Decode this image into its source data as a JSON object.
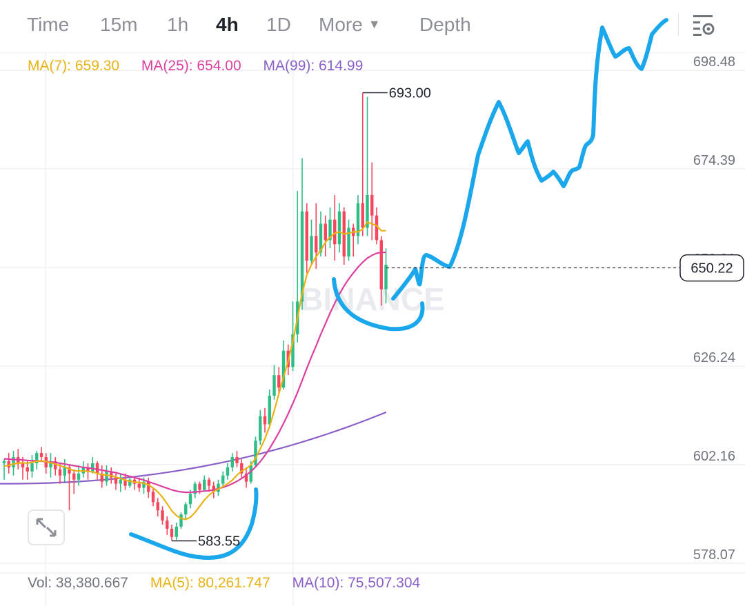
{
  "toolbar": {
    "tabs": [
      {
        "label": "Time",
        "active": false
      },
      {
        "label": "15m",
        "active": false
      },
      {
        "label": "1h",
        "active": false
      },
      {
        "label": "4h",
        "active": true
      },
      {
        "label": "1D",
        "active": false
      },
      {
        "label": "More",
        "active": false
      },
      {
        "label": "Depth",
        "active": false
      }
    ],
    "icons": [
      "chevron-down-icon",
      "settings-icon"
    ]
  },
  "indicators": {
    "ma7": {
      "label": "MA(7): 659.30",
      "color": "#e9b213"
    },
    "ma25": {
      "label": "MA(25): 654.00",
      "color": "#dc3fa0"
    },
    "ma99": {
      "label": "MA(99): 614.99",
      "color": "#8a5fc8"
    }
  },
  "volume": {
    "vol": {
      "label": "Vol: 38,380.667",
      "color": "#70757c"
    },
    "ma5": {
      "label": "MA(5): 80,261.747",
      "color": "#e9b213"
    },
    "ma10": {
      "label": "MA(10): 75,507.304",
      "color": "#8a5fc8"
    }
  },
  "chart_data": {
    "type": "candlestick",
    "y_ticks": [
      "698.48",
      "674.39",
      "650.31",
      "626.24",
      "602.16",
      "578.07"
    ],
    "y_tick_values": [
      698.48,
      674.39,
      650.31,
      626.24,
      602.16,
      578.07
    ],
    "ylim": [
      578.07,
      698.48
    ],
    "current_price": "650.22",
    "current_price_value": 650.22,
    "high_label": "693.00",
    "high_value": 693.0,
    "low_label": "583.55",
    "low_value": 583.55,
    "watermark": "BINANCE",
    "grid": true,
    "colors": {
      "up": "#2ebd85",
      "down": "#f6465d",
      "grid": "#eef0f2",
      "annotation": "#1aa7ec"
    },
    "candles": [
      [
        602.5,
        603.0,
        598.5,
        603.5
      ],
      [
        603.0,
        601.5,
        600.0,
        605.0
      ],
      [
        601.5,
        604.0,
        599.5,
        605.5
      ],
      [
        604.0,
        602.5,
        601.0,
        606.0
      ],
      [
        602.5,
        601.5,
        598.5,
        604.0
      ],
      [
        601.5,
        600.5,
        598.5,
        603.0
      ],
      [
        600.5,
        602.5,
        599.0,
        604.5
      ],
      [
        602.5,
        605.0,
        601.0,
        605.5
      ],
      [
        605.0,
        604.0,
        603.0,
        606.5
      ],
      [
        604.0,
        601.5,
        600.0,
        605.0
      ],
      [
        601.5,
        603.0,
        599.0,
        605.0
      ],
      [
        603.0,
        601.0,
        599.5,
        604.0
      ],
      [
        601.0,
        599.5,
        597.5,
        602.5
      ],
      [
        599.5,
        601.5,
        598.0,
        603.5
      ],
      [
        601.5,
        600.0,
        591.0,
        602.0
      ],
      [
        600.0,
        598.5,
        595.0,
        601.0
      ],
      [
        598.5,
        600.0,
        597.0,
        602.0
      ],
      [
        600.0,
        601.5,
        599.0,
        603.0
      ],
      [
        601.5,
        600.5,
        598.5,
        602.5
      ],
      [
        600.5,
        602.5,
        600.0,
        604.0
      ],
      [
        602.5,
        600.0,
        598.5,
        603.0
      ],
      [
        600.0,
        598.0,
        596.5,
        602.0
      ],
      [
        598.0,
        600.5,
        597.0,
        602.0
      ],
      [
        600.5,
        599.0,
        597.5,
        601.5
      ],
      [
        599.0,
        597.5,
        596.0,
        600.0
      ],
      [
        597.5,
        598.5,
        595.5,
        600.0
      ],
      [
        598.5,
        597.0,
        596.0,
        600.0
      ],
      [
        597.0,
        598.5,
        596.5,
        599.0
      ],
      [
        598.5,
        597.5,
        596.0,
        599.0
      ],
      [
        597.5,
        596.5,
        595.5,
        599.0
      ],
      [
        596.5,
        598.0,
        595.0,
        599.0
      ],
      [
        598.0,
        595.5,
        594.0,
        599.0
      ],
      [
        595.5,
        593.0,
        592.0,
        596.5
      ],
      [
        593.0,
        591.0,
        589.5,
        594.0
      ],
      [
        591.0,
        588.5,
        587.5,
        592.0
      ],
      [
        588.5,
        586.5,
        585.0,
        589.5
      ],
      [
        586.5,
        584.5,
        583.55,
        587.5
      ],
      [
        584.5,
        587.0,
        583.8,
        588.0
      ],
      [
        587.0,
        590.0,
        586.5,
        590.5
      ],
      [
        590.0,
        592.5,
        589.0,
        593.0
      ],
      [
        592.5,
        595.0,
        591.5,
        596.0
      ],
      [
        595.0,
        597.5,
        594.0,
        598.0
      ],
      [
        597.5,
        596.0,
        595.0,
        598.0
      ],
      [
        596.0,
        598.5,
        595.5,
        599.5
      ],
      [
        598.5,
        597.0,
        595.5,
        599.0
      ],
      [
        597.0,
        595.5,
        594.0,
        598.0
      ],
      [
        595.5,
        597.5,
        594.5,
        598.5
      ],
      [
        597.5,
        599.5,
        596.5,
        600.5
      ],
      [
        599.5,
        601.5,
        598.5,
        602.5
      ],
      [
        601.5,
        604.0,
        600.5,
        605.0
      ],
      [
        604.0,
        602.5,
        601.5,
        605.5
      ],
      [
        602.5,
        600.0,
        599.0,
        603.5
      ],
      [
        600.0,
        598.0,
        596.5,
        601.5
      ],
      [
        598.0,
        602.0,
        597.5,
        603.0
      ],
      [
        602.0,
        608.0,
        601.5,
        609.0
      ],
      [
        608.0,
        614.0,
        607.0,
        615.5
      ],
      [
        614.0,
        612.0,
        610.0,
        616.0
      ],
      [
        612.0,
        619.0,
        611.0,
        620.5
      ],
      [
        619.0,
        624.0,
        618.0,
        626.5
      ],
      [
        624.0,
        621.0,
        619.5,
        626.0
      ],
      [
        621.0,
        630.0,
        620.5,
        632.5
      ],
      [
        630.0,
        626.0,
        624.0,
        631.5
      ],
      [
        626.0,
        634.0,
        625.0,
        642.0
      ],
      [
        634.0,
        642.0,
        632.0,
        669.0
      ],
      [
        642.0,
        664.0,
        640.0,
        677.0
      ],
      [
        664.0,
        652.0,
        649.0,
        666.0
      ],
      [
        652.0,
        658.0,
        651.0,
        662.0
      ],
      [
        658.0,
        654.0,
        650.0,
        666.0
      ],
      [
        654.0,
        661.0,
        653.0,
        664.0
      ],
      [
        661.0,
        657.0,
        653.0,
        663.0
      ],
      [
        657.0,
        662.0,
        655.0,
        665.0
      ],
      [
        662.0,
        656.0,
        652.0,
        668.0
      ],
      [
        656.0,
        664.0,
        654.0,
        666.0
      ],
      [
        664.0,
        653.0,
        651.0,
        665.0
      ],
      [
        653.0,
        660.0,
        652.0,
        662.0
      ],
      [
        660.0,
        658.0,
        653.0,
        661.0
      ],
      [
        658.0,
        666.0,
        656.0,
        668.0
      ],
      [
        666.0,
        660.0,
        658.0,
        693.0
      ],
      [
        660.0,
        668.0,
        658.0,
        692.0
      ],
      [
        668.0,
        663.0,
        657.0,
        676.0
      ],
      [
        663.0,
        657.0,
        656.0,
        665.0
      ],
      [
        657.0,
        645.0,
        641.0,
        658.0
      ],
      [
        645.0,
        651.0,
        641.5,
        655.0
      ]
    ],
    "ma7": [
      601.8,
      602.0,
      602.3,
      602.5,
      602.6,
      602.5,
      602.7,
      603.0,
      603.1,
      602.9,
      602.6,
      602.3,
      601.9,
      601.6,
      601.1,
      600.7,
      600.6,
      600.6,
      600.5,
      600.4,
      600.0,
      599.7,
      599.6,
      599.4,
      599.1,
      598.8,
      598.4,
      598.1,
      597.9,
      597.8,
      597.6,
      597.2,
      596.5,
      595.5,
      594.2,
      592.6,
      590.9,
      589.7,
      589.0,
      588.8,
      589.3,
      590.5,
      592.0,
      593.5,
      594.7,
      595.6,
      596.2,
      596.8,
      597.5,
      598.4,
      599.6,
      600.6,
      601.2,
      602.1,
      603.7,
      606.0,
      608.5,
      611.5,
      615.3,
      619.5,
      623.5,
      627.5,
      632.2,
      638.0,
      644.0,
      648.5,
      651.0,
      653.0,
      654.5,
      656.5,
      657.7,
      658.7,
      659.0,
      658.5,
      658.7,
      659.0,
      659.0,
      659.7,
      661.4,
      661.0,
      660.5,
      659.3,
      659.3
    ],
    "ma25": [
      603.6,
      603.5,
      603.4,
      603.4,
      603.3,
      603.2,
      603.1,
      603.1,
      603.0,
      602.9,
      602.8,
      602.7,
      602.5,
      602.3,
      602.1,
      601.9,
      601.7,
      601.5,
      601.4,
      601.2,
      601.0,
      600.8,
      600.6,
      600.4,
      600.2,
      599.9,
      599.6,
      599.3,
      599.0,
      598.7,
      598.4,
      598.0,
      597.6,
      597.2,
      596.8,
      596.4,
      596.0,
      595.7,
      595.5,
      595.4,
      595.4,
      595.5,
      595.6,
      595.7,
      595.8,
      596.0,
      596.3,
      596.6,
      597.0,
      597.5,
      598.1,
      598.8,
      599.6,
      600.5,
      601.6,
      602.9,
      604.4,
      606.1,
      608.0,
      610.0,
      612.2,
      614.6,
      617.1,
      619.8,
      622.7,
      625.7,
      628.5,
      631.2,
      634.0,
      636.6,
      639.2,
      641.6,
      643.8,
      645.8,
      647.5,
      649.0,
      650.4,
      651.6,
      652.6,
      653.3,
      653.8,
      654.0,
      654.0
    ],
    "ma99_segment_x": [
      0,
      560
    ],
    "ma99_segment_y": [
      597.5,
      614.99
    ],
    "annotation_paths": [
      "M190,775 C230,790 250,800 275,806 C320,815 350,805 365,760 C372,735 372,718 371,710",
      "M484,405 C487,450 520,470 565,477 C605,480 615,460 612,440",
      "M570,433 C585,415 600,395 602,390 C606,405 608,418 609,410 C612,385 613,370 618,370 C628,372 640,385 652,387 C670,350 680,290 693,225 C705,190 712,170 723,148 C735,170 745,205 752,222 C758,215 762,208 765,205 C770,225 775,245 785,262 C792,258 800,252 802,249 C808,255 812,262 817,270 C822,262 825,250 830,247 C835,245 838,245 840,242 C844,228 847,213 850,210 C855,206 858,205 860,195 C862,150 862,100 873,40 C880,55 887,75 892,82 C898,80 905,70 912,70 C918,82 922,95 930,100 C935,90 940,70 945,50 C953,40 960,32 966,29"
    ]
  }
}
